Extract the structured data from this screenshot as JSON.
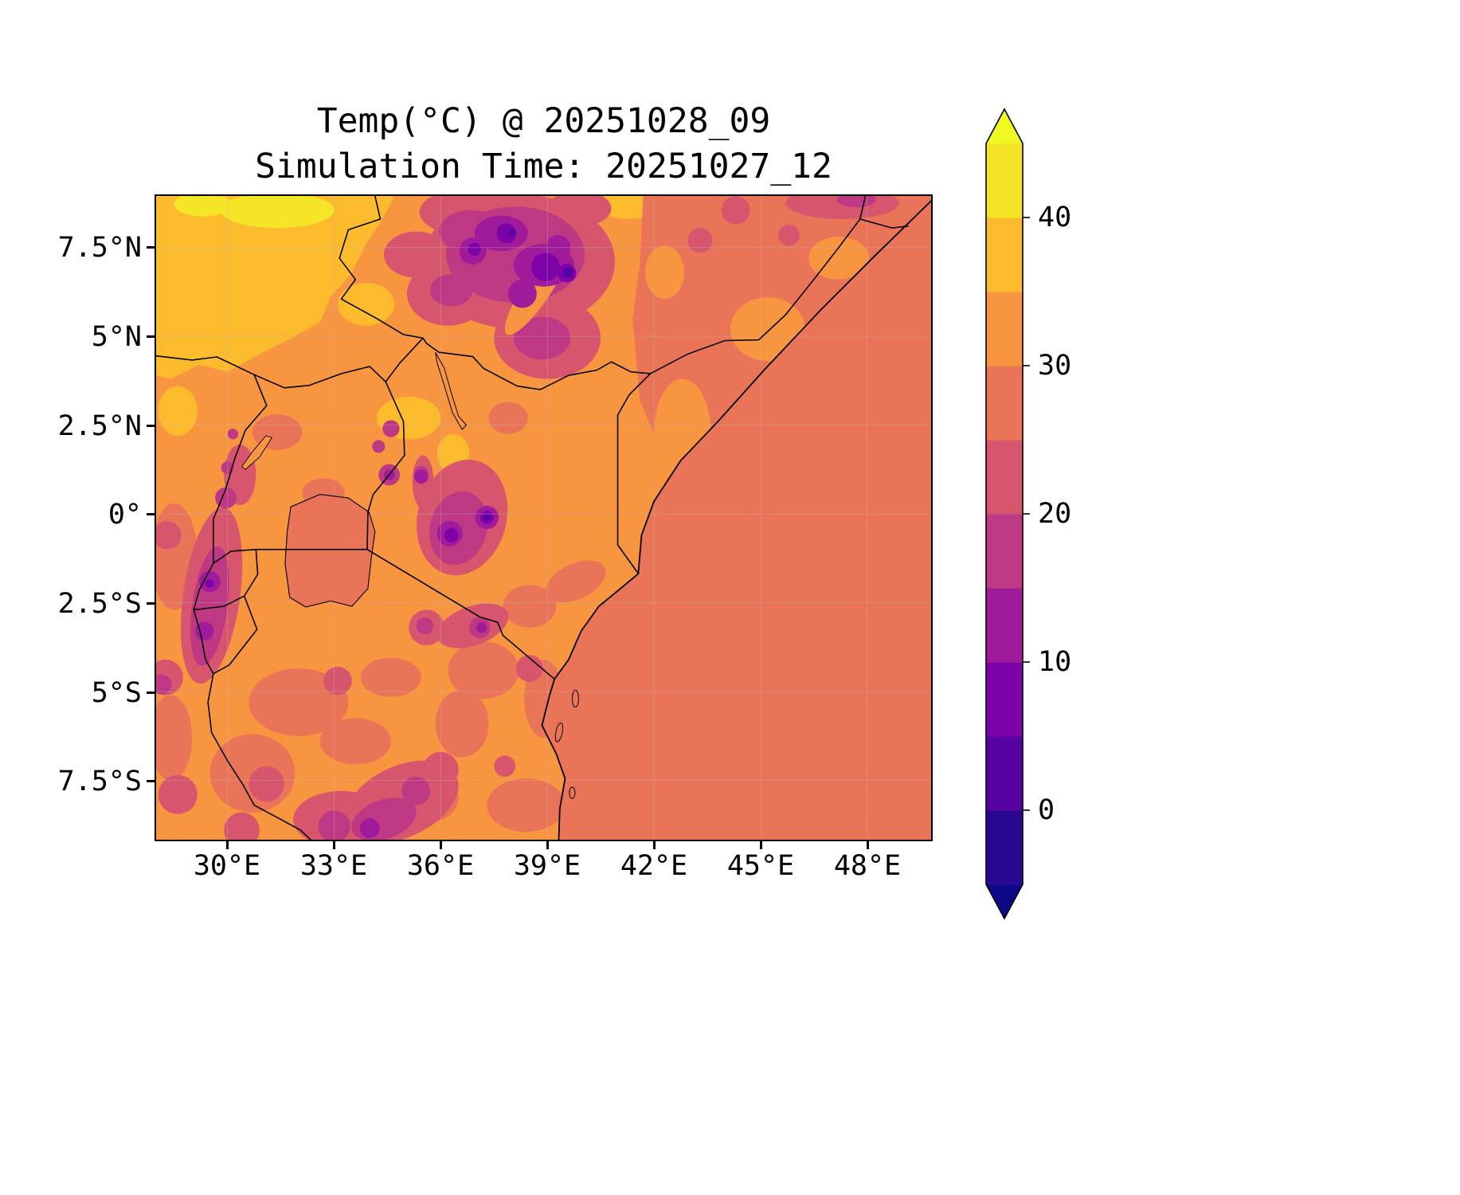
{
  "figure": {
    "title_line1": "Temp(°C) @ 20251028_09",
    "title_line2": "Simulation Time: 20251027_12",
    "background": "#ffffff"
  },
  "axes": {
    "y_tick_labels": [
      "7.5°N",
      "5°N",
      "2.5°N",
      "0°",
      "2.5°S",
      "5°S",
      "7.5°S"
    ],
    "x_tick_labels": [
      "30°E",
      "33°E",
      "36°E",
      "39°E",
      "42°E",
      "45°E",
      "48°E"
    ]
  },
  "colorbar": {
    "tick_labels": [
      "40",
      "30",
      "20",
      "10",
      "0"
    ],
    "ticks": [
      40,
      30,
      20,
      10,
      0
    ],
    "range": [
      -5,
      45
    ],
    "over_color": "#f0f921",
    "under_color": "#0d0887",
    "band_colors": [
      "#2a0791",
      "#5602a3",
      "#7d03a8",
      "#a01b9b",
      "#bf3884",
      "#d7566d",
      "#ea7457",
      "#f79540",
      "#fcba2d",
      "#f6e426"
    ]
  },
  "chart_data": {
    "type": "heatmap",
    "subtype": "filled-contour temperature map",
    "title": "Temp(°C) @ 20251028_09",
    "subtitle": "Simulation Time: 20251027_12",
    "variable": "Temp",
    "units": "°C",
    "valid_time": "20251028_09",
    "simulation_time": "20251027_12",
    "region": "East Africa / Horn of Africa (Ethiopia, Somalia, Kenya, Uganda, Rwanda, Burundi, Tanzania, Indian Ocean)",
    "projection": "lat-lon grid",
    "extent": {
      "lon_min": 28.0,
      "lon_max": 49.8,
      "lat_min": -9.2,
      "lat_max": 9.0
    },
    "x_tick_values_deg_e": [
      30,
      33,
      36,
      39,
      42,
      45,
      48
    ],
    "x_tick_labels": [
      "30°E",
      "33°E",
      "36°E",
      "39°E",
      "42°E",
      "45°E",
      "48°E"
    ],
    "y_tick_values_deg_n": [
      7.5,
      5.0,
      2.5,
      0.0,
      -2.5,
      -5.0,
      -7.5
    ],
    "y_tick_labels": [
      "7.5°N",
      "5°N",
      "2.5°N",
      "0°",
      "2.5°S",
      "5°S",
      "7.5°S"
    ],
    "colormap": "plasma (discrete)",
    "contour_levels_c": [
      -5,
      0,
      5,
      10,
      15,
      20,
      25,
      30,
      35,
      40,
      45
    ],
    "colorbar_tick_values_c": [
      40,
      30,
      20,
      10,
      0
    ],
    "colorbar_orientation": "vertical-right",
    "colorbar_extend": "both",
    "grid": true,
    "features": [
      {
        "region": "Indian Ocean east of Somalia-Kenya-Tanzania coastline (uniform)",
        "approx_temp_c": [
          25,
          30
        ]
      },
      {
        "region": "Most interior lowlands (Uganda, N/E Kenya, Somalia, central Tanzania)",
        "approx_temp_c": [
          30,
          35
        ]
      },
      {
        "region": "Northwest sector (South Sudan / Sudan lowlands)",
        "approx_temp_c": [
          35,
          42
        ]
      },
      {
        "region": "Ethiopian Highlands (large cool area, top centre)",
        "approx_temp_c": [
          5,
          25
        ]
      },
      {
        "region": "Coldest spot, Bale Mountains (~39.6E, 6.8N)",
        "approx_temp_c": [
          0,
          5
        ]
      },
      {
        "region": "Kenyan Highlands / Mt Kenya (~37.3E, 0.1S)",
        "approx_temp_c": [
          5,
          25
        ]
      },
      {
        "region": "Albertine Rift / Rwanda-Burundi highlands (~29.5E)",
        "approx_temp_c": [
          10,
          25
        ]
      },
      {
        "region": "Kilimanjaro & N-Tanzania volcanic highlands (~37.1E, 3.2S)",
        "approx_temp_c": [
          10,
          25
        ]
      },
      {
        "region": "Southern Tanzania highlands",
        "approx_temp_c": [
          15,
          25
        ]
      },
      {
        "region": "Northern Somalia coastal mountains",
        "approx_temp_c": [
          20,
          25
        ]
      }
    ]
  }
}
